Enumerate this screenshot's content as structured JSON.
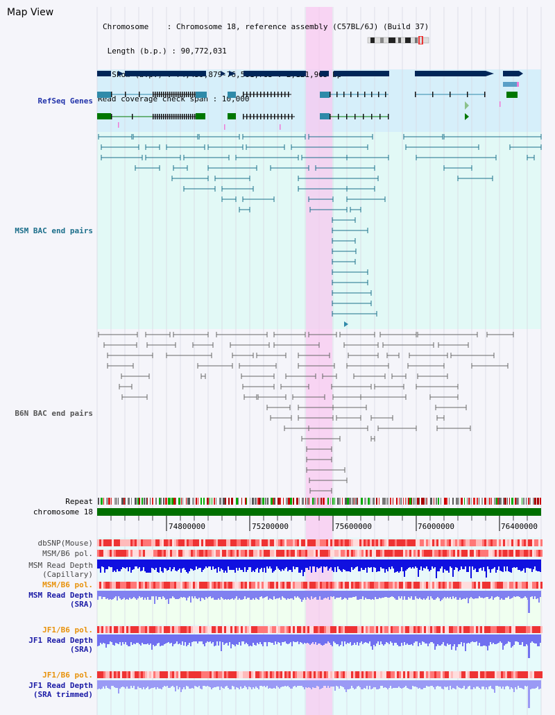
{
  "app": {
    "title": "Map View"
  },
  "header": {
    "chromosome_label": "Chromosome    : Chromosome 18, reference assembly (C57BL/6J) (Build 37)",
    "length_label": " Length (b.p.) : 90,772,031",
    "show_label": "  Show (b.p.) : 74,459,879-76,581,783 : 2,121,905 bp",
    "coverage_label": "Read coverage check span : 10,000"
  },
  "tracks": {
    "refseq": "RefSeq Genes",
    "msm_bac": "MSM BAC end pairs",
    "b6n_bac": "B6N BAC end pairs",
    "repeat": "Repeat",
    "chromosome": "chromosome 18",
    "dbsnp": "dbSNP(Mouse)",
    "msm_b6_pol": "MSM/B6 pol.",
    "msm_depth_cap_1": "MSM Read Depth",
    "msm_depth_cap_2": "(Capillary)",
    "msm_b6_pol_2": "MSM/B6 pol.",
    "msm_depth_sra_1": "MSM Read Depth",
    "msm_depth_sra_2": "(SRA)",
    "jf1_b6_pol": "JF1/B6 pol.",
    "jf1_depth_sra_1": "JF1 Read Depth",
    "jf1_depth_sra_2": "(SRA)",
    "jf1_b6_pol_2": "JF1/B6 pol.",
    "jf1_depth_trim_1": "JF1 Read Depth",
    "jf1_depth_trim_2": "(SRA trimmed)"
  },
  "axis": {
    "ticks": [
      "74800000",
      "75200000",
      "75600000",
      "76000000",
      "76400000"
    ]
  },
  "colors": {
    "highlight": "#fad2f4",
    "refseq_bg": "#d6effa",
    "msm_bg": "#e2f9f6",
    "dark_gene": "#002658",
    "teal": "#2f8aa9",
    "green": "#007700",
    "chromosome": "#006f00"
  }
}
